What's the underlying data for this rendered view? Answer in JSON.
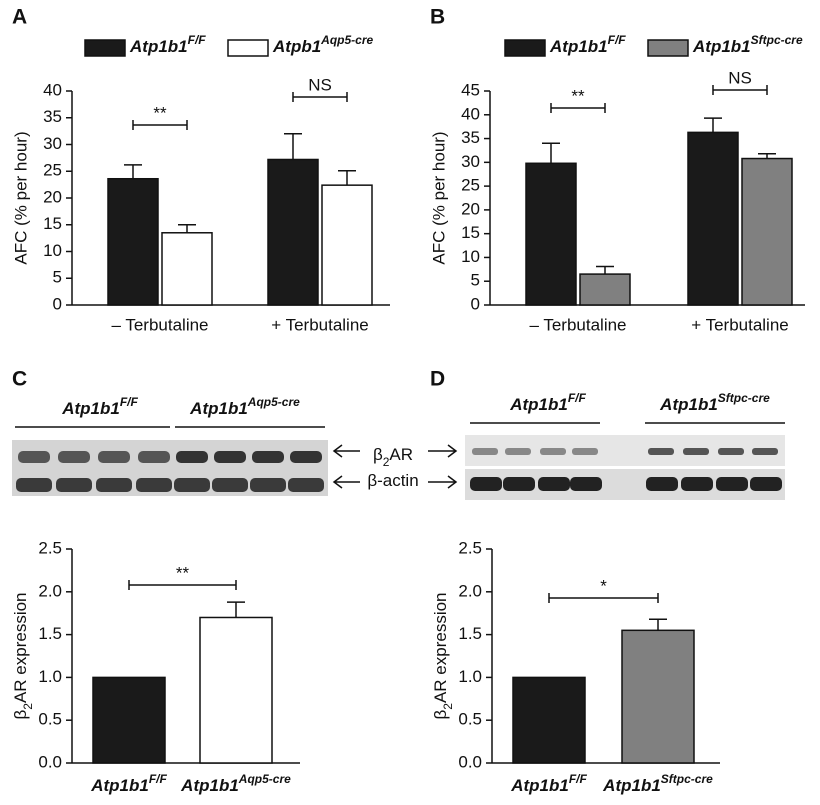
{
  "chart_data": [
    {
      "panel": "A",
      "type": "bar",
      "ylabel": "AFC (% per hour)",
      "categories": [
        "– Terbutaline",
        "+ Terbutaline"
      ],
      "series": [
        {
          "name": "Atp1b1",
          "name_sup": "F/F",
          "color": "#1a1a1a",
          "values": [
            23.6,
            27.2
          ],
          "errors": [
            2.6,
            4.8
          ]
        },
        {
          "name": "Atpb1",
          "name_sup": "Aqp5-cre",
          "color": "#ffffff",
          "values": [
            13.5,
            22.4
          ],
          "errors": [
            1.5,
            2.7
          ]
        }
      ],
      "annotations": [
        "**",
        "NS"
      ],
      "ylim": [
        0,
        40
      ],
      "yticks": [
        0,
        5,
        10,
        15,
        20,
        25,
        30,
        35,
        40
      ]
    },
    {
      "panel": "B",
      "type": "bar",
      "ylabel": "AFC (% per hour)",
      "categories": [
        "– Terbutaline",
        "+ Terbutaline"
      ],
      "series": [
        {
          "name": "Atp1b1",
          "name_sup": "F/F",
          "color": "#1a1a1a",
          "values": [
            29.8,
            36.3
          ],
          "errors": [
            4.2,
            3.0
          ]
        },
        {
          "name": "Atp1b1",
          "name_sup": "Sftpc-cre",
          "color": "#808080",
          "values": [
            6.5,
            30.8
          ],
          "errors": [
            1.6,
            1.0
          ]
        }
      ],
      "annotations": [
        "**",
        "NS"
      ],
      "ylim": [
        0,
        45
      ],
      "yticks": [
        0,
        5,
        10,
        15,
        20,
        25,
        30,
        35,
        40,
        45
      ]
    },
    {
      "panel": "C",
      "type": "bar",
      "ylabel": {
        "before": "β",
        "sub": "2",
        "after": "AR expression"
      },
      "categories": [
        "Atp1b1",
        "Atp1b1"
      ],
      "category_sups": [
        "F/F",
        "Aqp5-cre"
      ],
      "values": [
        1.0,
        1.7
      ],
      "errors": [
        0,
        0.18
      ],
      "colors": [
        "#1a1a1a",
        "#ffffff"
      ],
      "annotations": [
        "**"
      ],
      "ylim": [
        0,
        2.5
      ],
      "yticks": [
        {
          "value": 0,
          "label": "0.0"
        },
        0.5,
        {
          "value": 1,
          "label": "1.0"
        },
        1.5,
        {
          "value": 2,
          "label": "2.0"
        },
        2.5
      ]
    },
    {
      "panel": "D",
      "type": "bar",
      "ylabel": {
        "before": "β",
        "sub": "2",
        "after": "AR expression"
      },
      "categories": [
        "Atp1b1",
        "Atp1b1"
      ],
      "category_sups": [
        "F/F",
        "Sftpc-cre"
      ],
      "values": [
        1.0,
        1.55
      ],
      "errors": [
        0,
        0.13
      ],
      "colors": [
        "#1a1a1a",
        "#808080"
      ],
      "annotations": [
        "*"
      ],
      "ylim": [
        0,
        2.5
      ],
      "yticks": [
        {
          "value": 0,
          "label": "0.0"
        },
        0.5,
        {
          "value": 1,
          "label": "1.0"
        },
        1.5,
        {
          "value": 2,
          "label": "2.0"
        },
        2.5
      ]
    }
  ],
  "blots": [
    {
      "panel": "C",
      "groups": [
        {
          "name": "Atp1b1",
          "sup": "F/F"
        },
        {
          "name": "Atp1b1",
          "sup": "Aqp5-cre"
        }
      ],
      "bands": [
        {
          "name": "β",
          "sub": "2",
          "rest": "AR"
        },
        {
          "name": "β-actin"
        }
      ]
    },
    {
      "panel": "D",
      "groups": [
        {
          "name": "Atp1b1",
          "sup": "F/F"
        },
        {
          "name": "Atp1b1",
          "sup": "Sftpc-cre"
        }
      ]
    }
  ]
}
